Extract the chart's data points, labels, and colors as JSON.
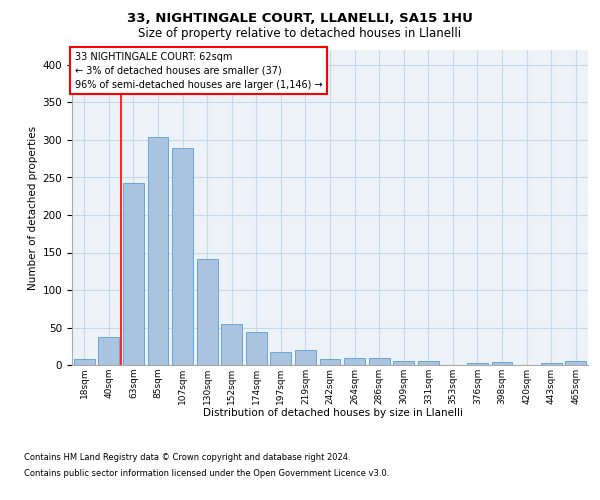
{
  "title1": "33, NIGHTINGALE COURT, LLANELLI, SA15 1HU",
  "title2": "Size of property relative to detached houses in Llanelli",
  "xlabel": "Distribution of detached houses by size in Llanelli",
  "ylabel": "Number of detached properties",
  "categories": [
    "18sqm",
    "40sqm",
    "63sqm",
    "85sqm",
    "107sqm",
    "130sqm",
    "152sqm",
    "174sqm",
    "197sqm",
    "219sqm",
    "242sqm",
    "264sqm",
    "286sqm",
    "309sqm",
    "331sqm",
    "353sqm",
    "376sqm",
    "398sqm",
    "420sqm",
    "443sqm",
    "465sqm"
  ],
  "values": [
    8,
    38,
    242,
    304,
    289,
    142,
    55,
    44,
    17,
    20,
    8,
    10,
    10,
    5,
    5,
    0,
    3,
    4,
    0,
    3,
    5
  ],
  "bar_color": "#aac4e0",
  "bar_edge_color": "#5a9fd4",
  "grid_color": "#c8d8e8",
  "background_color": "#edf2f8",
  "annotation_text": "33 NIGHTINGALE COURT: 62sqm\n← 3% of detached houses are smaller (37)\n96% of semi-detached houses are larger (1,146) →",
  "vline_x_index": 1.5,
  "ylim": [
    0,
    420
  ],
  "yticks": [
    0,
    50,
    100,
    150,
    200,
    250,
    300,
    350,
    400
  ],
  "footnote1": "Contains HM Land Registry data © Crown copyright and database right 2024.",
  "footnote2": "Contains public sector information licensed under the Open Government Licence v3.0."
}
